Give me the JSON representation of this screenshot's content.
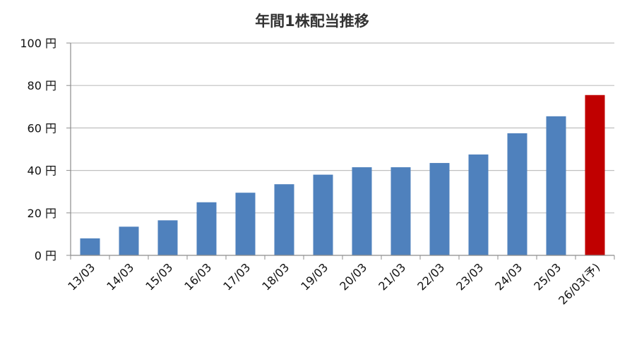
{
  "chart_data": {
    "type": "bar",
    "title": "年間1株配当推移",
    "xlabel": "",
    "ylabel": "",
    "categories": [
      "13/03",
      "14/03",
      "15/03",
      "16/03",
      "17/03",
      "18/03",
      "19/03",
      "20/03",
      "21/03",
      "22/03",
      "23/03",
      "24/03",
      "25/03",
      "26/03(予)"
    ],
    "values": [
      8,
      13.5,
      16.5,
      25,
      29.5,
      33.5,
      38,
      41.5,
      41.5,
      43.5,
      47.5,
      57.5,
      65.5,
      75.5
    ],
    "y_tick_labels": [
      "0 円",
      "20 円",
      "40 円",
      "60 円",
      "80 円",
      "100 円"
    ],
    "ylim": [
      0,
      100
    ],
    "grid": true,
    "legend": "none",
    "colors": {
      "bar": "#4f81bd",
      "forecast_bar": "#c00000",
      "grid": "#bfbfbf"
    },
    "forecast_index": 13
  }
}
